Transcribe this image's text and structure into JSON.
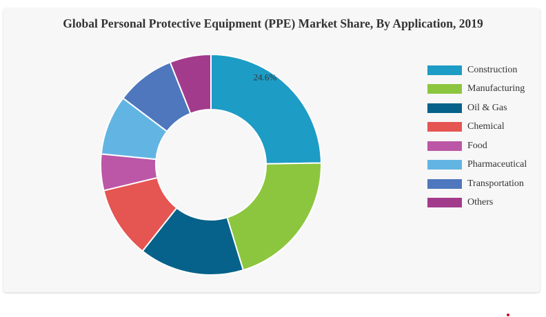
{
  "chart_data": {
    "type": "pie",
    "title": "Global Personal Protective Equipment (PPE) Market Share, By Application, 2019",
    "labels": [
      "Construction",
      "Manufacturing",
      "Oil & Gas",
      "Chemical",
      "Food",
      "Pharmaceutical",
      "Transportation",
      "Others"
    ],
    "values": [
      24.6,
      20.4,
      15.3,
      10.5,
      5.3,
      8.7,
      8.6,
      6.0
    ],
    "colors": [
      "#1d9cc5",
      "#8cc63f",
      "#06628a",
      "#e55552",
      "#bb57a6",
      "#62b5e3",
      "#4e77bd",
      "#a33b8c"
    ],
    "data_labels": [
      "24.6%",
      "",
      "",
      "",
      "",
      "",
      "",
      ""
    ],
    "donut": true,
    "legend_position": "right"
  },
  "decor": {
    "dot_color": "#d0021b"
  }
}
